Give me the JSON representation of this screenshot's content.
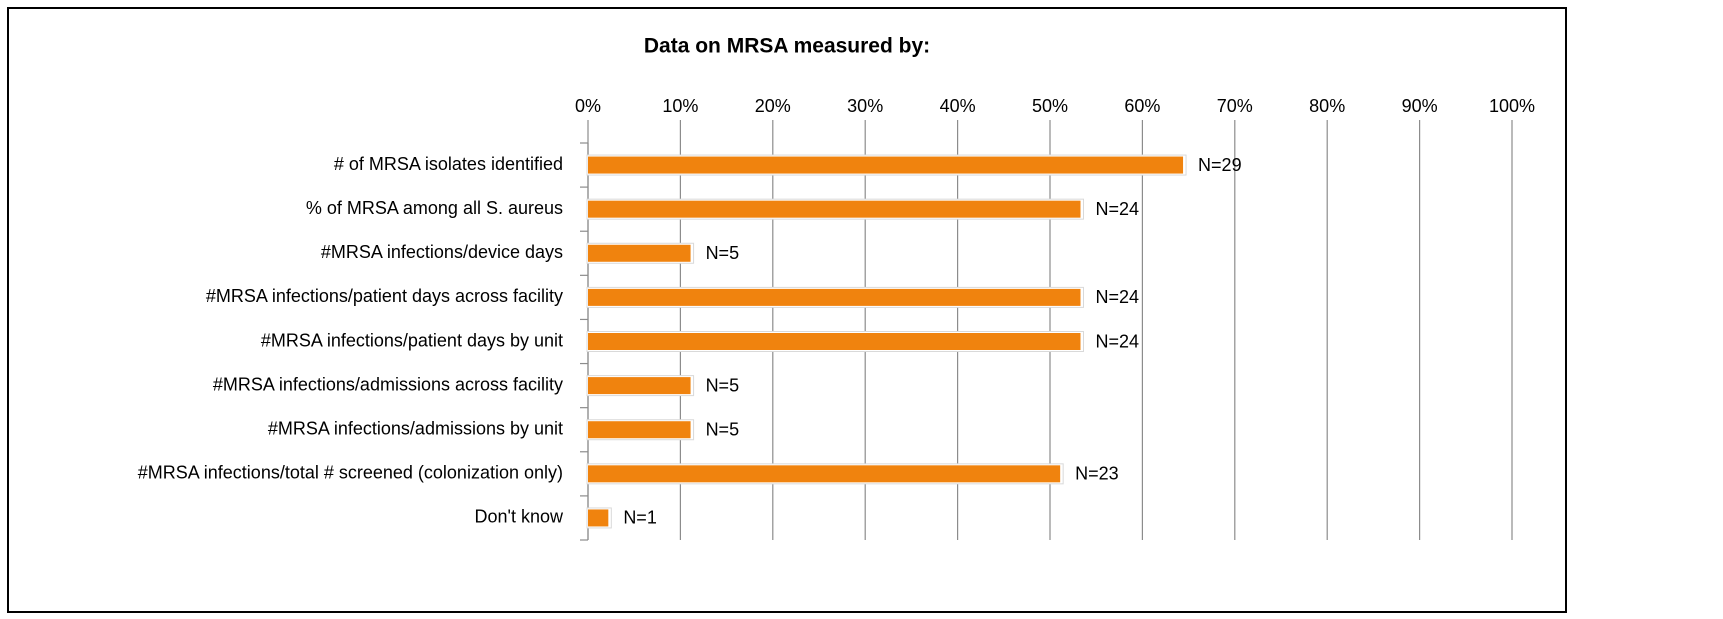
{
  "chart_data": {
    "type": "bar",
    "orientation": "horizontal",
    "title": "Data on MRSA measured by:",
    "categories": [
      "# of MRSA isolates identified",
      "% of MRSA among all S. aureus",
      "#MRSA infections/device days",
      "#MRSA infections/patient days across facility",
      "#MRSA infections/patient days by unit",
      "#MRSA infections/admissions across facility",
      "#MRSA infections/admissions by unit",
      "#MRSA infections/total # screened (colonization only)",
      "Don't know"
    ],
    "values": [
      64.4,
      53.3,
      11.1,
      53.3,
      53.3,
      11.1,
      11.1,
      51.1,
      2.2
    ],
    "bar_annotations": [
      "N=29",
      "N=24",
      "N=5",
      "N=24",
      "N=24",
      "N=5",
      "N=5",
      "N=23",
      "N=1"
    ],
    "color": "#f0830e",
    "xlim": [
      0,
      100
    ],
    "xticks": [
      {
        "value": 0,
        "label": "0%"
      },
      {
        "value": 10,
        "label": "10%"
      },
      {
        "value": 20,
        "label": "20%"
      },
      {
        "value": 30,
        "label": "30%"
      },
      {
        "value": 40,
        "label": "40%"
      },
      {
        "value": 50,
        "label": "50%"
      },
      {
        "value": 60,
        "label": "60%"
      },
      {
        "value": 70,
        "label": "70%"
      },
      {
        "value": 80,
        "label": "80%"
      },
      {
        "value": 90,
        "label": "90%"
      },
      {
        "value": 100,
        "label": "100%"
      }
    ],
    "grid": true
  }
}
